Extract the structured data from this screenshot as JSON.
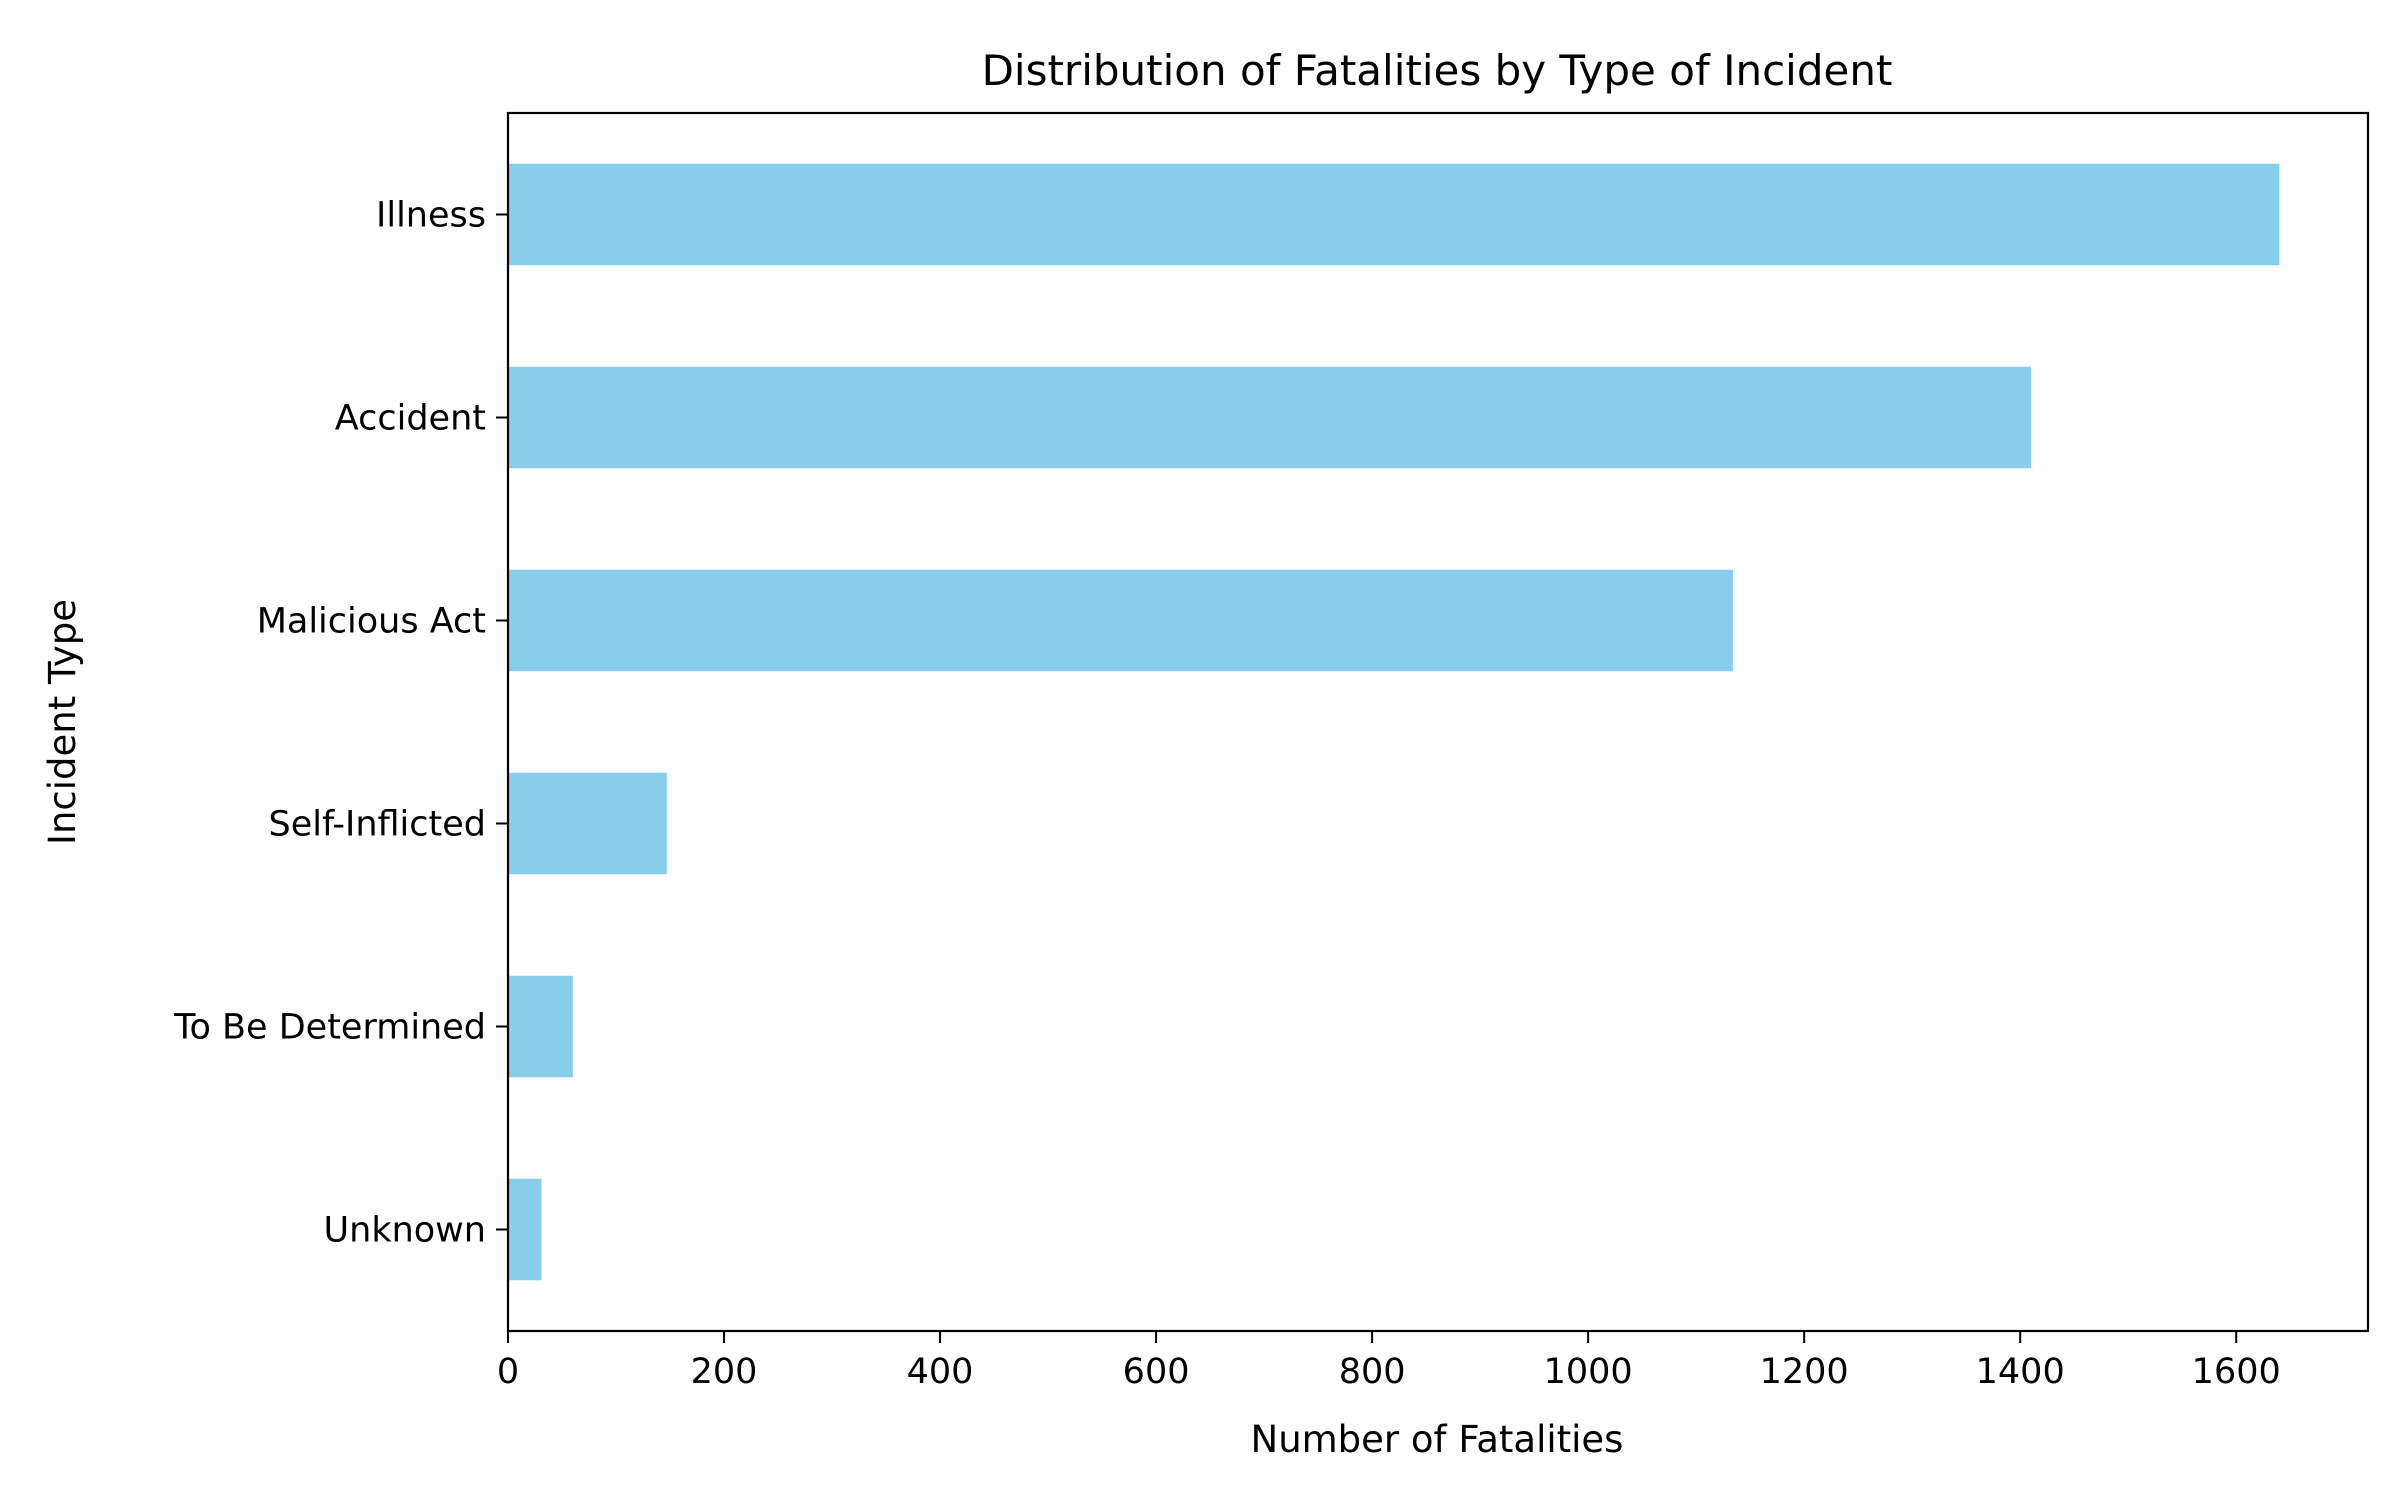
{
  "chart_data": {
    "type": "bar",
    "orientation": "horizontal",
    "title": "Distribution of Fatalities by Type of Incident",
    "xlabel": "Number of Fatalities",
    "ylabel": "Incident Type",
    "categories": [
      "Unknown",
      "To Be Determined",
      "Self-Inflicted",
      "Malicious Act",
      "Accident",
      "Illness"
    ],
    "values": [
      31,
      60,
      147,
      1134,
      1410,
      1640
    ],
    "xlim": [
      0,
      1722
    ],
    "xticks": [
      0,
      200,
      400,
      600,
      800,
      1000,
      1200,
      1400,
      1600
    ],
    "grid": false,
    "legend": "none",
    "bar_color": "#87ceeb"
  }
}
